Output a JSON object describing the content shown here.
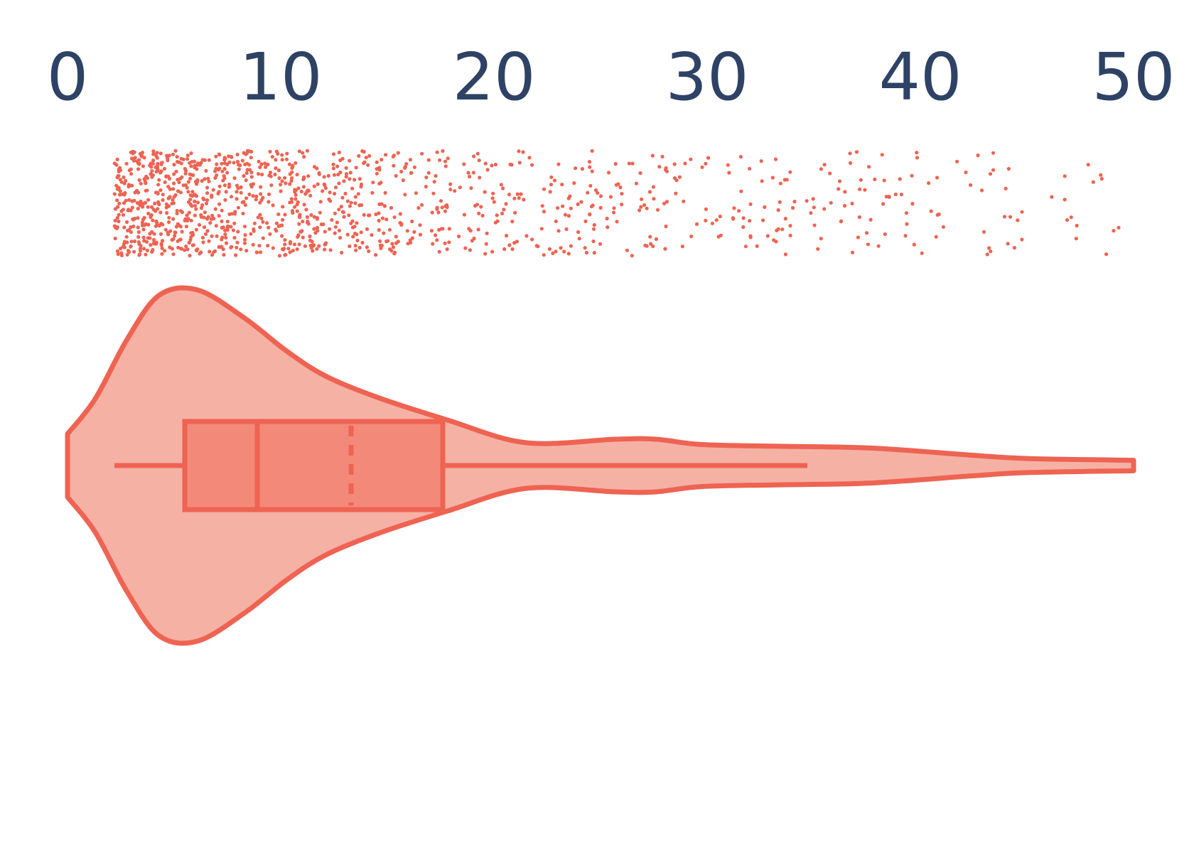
{
  "chart_data": {
    "type": "violin",
    "title": "",
    "xlabel": "",
    "ylabel": "",
    "xlim": [
      0,
      50
    ],
    "ticks": [
      {
        "value": 0,
        "label": "0"
      },
      {
        "value": 10,
        "label": "10"
      },
      {
        "value": 20,
        "label": "20"
      },
      {
        "value": 30,
        "label": "30"
      },
      {
        "value": 40,
        "label": "40"
      },
      {
        "value": 50,
        "label": "50"
      }
    ],
    "colors": {
      "accent": "#ee6352",
      "violin_fill": "#f6b1a5",
      "box_fill": "#f38979",
      "tick_text": "#2e4265"
    },
    "points": {
      "range": [
        2.2,
        49.8
      ],
      "density_profile": [
        {
          "x": 3,
          "relative_density": 1.0
        },
        {
          "x": 6,
          "relative_density": 0.95
        },
        {
          "x": 10,
          "relative_density": 0.65
        },
        {
          "x": 15,
          "relative_density": 0.35
        },
        {
          "x": 20,
          "relative_density": 0.18
        },
        {
          "x": 27,
          "relative_density": 0.15
        },
        {
          "x": 32,
          "relative_density": 0.1
        },
        {
          "x": 40,
          "relative_density": 0.08
        },
        {
          "x": 45,
          "relative_density": 0.04
        },
        {
          "x": 50,
          "relative_density": 0.02
        }
      ]
    },
    "violin_density": [
      {
        "x": 0,
        "relative_width": 0.18
      },
      {
        "x": 1.3,
        "relative_width": 0.38
      },
      {
        "x": 2.8,
        "relative_width": 0.72
      },
      {
        "x": 4.3,
        "relative_width": 0.97
      },
      {
        "x": 6.1,
        "relative_width": 1.0
      },
      {
        "x": 8.3,
        "relative_width": 0.84
      },
      {
        "x": 10.3,
        "relative_width": 0.65
      },
      {
        "x": 12.1,
        "relative_width": 0.51
      },
      {
        "x": 14.5,
        "relative_width": 0.39
      },
      {
        "x": 17.8,
        "relative_width": 0.26
      },
      {
        "x": 21.5,
        "relative_width": 0.13
      },
      {
        "x": 25.7,
        "relative_width": 0.15
      },
      {
        "x": 27.6,
        "relative_width": 0.15
      },
      {
        "x": 29.7,
        "relative_width": 0.12
      },
      {
        "x": 33.2,
        "relative_width": 0.11
      },
      {
        "x": 37.6,
        "relative_width": 0.1
      },
      {
        "x": 42.3,
        "relative_width": 0.06
      },
      {
        "x": 45.0,
        "relative_width": 0.04
      },
      {
        "x": 50.0,
        "relative_width": 0.03
      }
    ],
    "box": {
      "whisker_low": 2.2,
      "q1": 5.5,
      "median": 8.9,
      "mean": 13.3,
      "q3": 17.6,
      "whisker_high": 34.7
    }
  }
}
